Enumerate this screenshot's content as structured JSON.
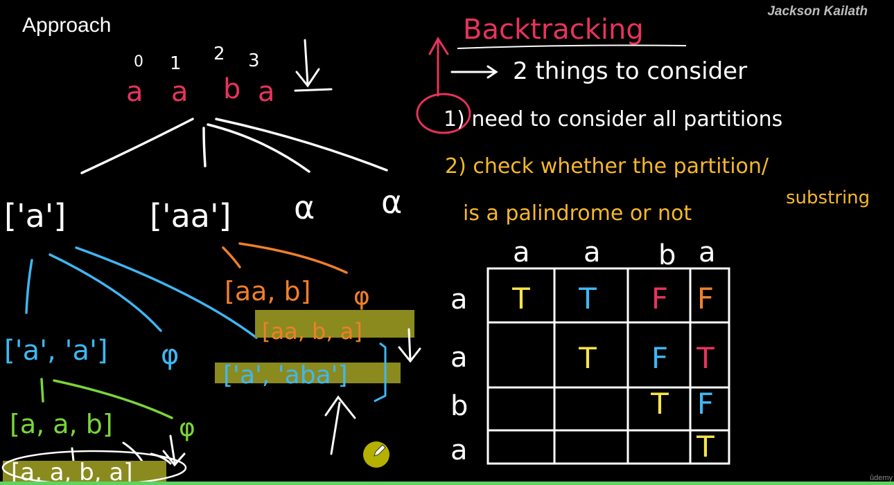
{
  "header": {
    "title": "Approach",
    "author": "Jackson Kailath",
    "watermark": "ûdemy"
  },
  "left": {
    "indices": [
      "0",
      "1",
      "2",
      "3"
    ],
    "letters": [
      "a",
      "a",
      "b",
      "a"
    ],
    "level1": [
      "['a']",
      "['aa']",
      "α",
      "α"
    ],
    "blue_branch": "['a', 'a']",
    "phi1": "φ",
    "green_branch": "[a, a, b]",
    "phi2": "φ",
    "bottom_result": "[a, a, b, a]",
    "orange_branch": "[aa, b]",
    "phi3": "φ",
    "highlight_aaba": "[aa, b, a]",
    "highlight_a_aba": "['a', 'aba']"
  },
  "right": {
    "heading": "Backtracking",
    "line1": "2 things to consider",
    "point1": "1) need to consider all partitions",
    "point2a": "2) check whether the partition/",
    "point2b": "is a palindrome or not",
    "point2c": "substring",
    "table": {
      "col_headers": [
        "a",
        "a",
        "b",
        "a"
      ],
      "row_headers": [
        "a",
        "a",
        "b",
        "a"
      ],
      "cells": [
        [
          "T",
          "T",
          "F",
          "F"
        ],
        [
          "",
          "T",
          "F",
          "T"
        ],
        [
          "",
          "",
          "T",
          "F"
        ],
        [
          "",
          "",
          "",
          "T"
        ]
      ],
      "cell_colors": [
        [
          "#f7e34a",
          "#3fb7f4",
          "#e8335c",
          "#f07f2b"
        ],
        [
          "",
          "#f7e34a",
          "#3fb7f4",
          "#e8335c"
        ],
        [
          "",
          "",
          "#f7e34a",
          "#3fb7f4"
        ],
        [
          "",
          "",
          "",
          "#f7e34a"
        ]
      ]
    }
  },
  "colors": {
    "white": "#ffffff",
    "red": "#e8335c",
    "orange": "#f07f2b",
    "yellow": "#f7b82a",
    "blue": "#3fb7f4",
    "green": "#7ad63a",
    "highlight": "#8b8a1e"
  }
}
